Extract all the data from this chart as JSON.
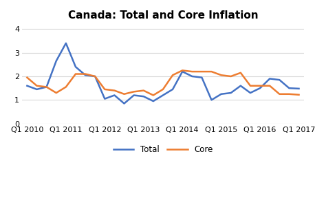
{
  "title": "Canada: Total and Core Inflation",
  "total_y": [
    1.6,
    1.45,
    1.55,
    2.65,
    3.4,
    2.4,
    2.05,
    2.0,
    1.05,
    1.2,
    0.85,
    1.2,
    1.15,
    0.95,
    1.2,
    1.45,
    2.2,
    2.0,
    1.95,
    1.0,
    1.25,
    1.3,
    1.6,
    1.3,
    1.5,
    1.9,
    1.85,
    1.5,
    1.48
  ],
  "core_y": [
    1.95,
    1.6,
    1.55,
    1.3,
    1.55,
    2.1,
    2.1,
    2.0,
    1.45,
    1.4,
    1.25,
    1.35,
    1.4,
    1.2,
    1.45,
    2.05,
    2.25,
    2.2,
    2.2,
    2.2,
    2.05,
    2.0,
    2.15,
    1.6,
    1.6,
    1.6,
    1.25,
    1.25,
    1.22
  ],
  "total_color": "#4472c4",
  "core_color": "#ed7d31",
  "ylim": [
    0,
    4.2
  ],
  "yticks": [
    0,
    1,
    2,
    3,
    4
  ],
  "xtick_positions": [
    0,
    4,
    8,
    12,
    16,
    20,
    24,
    28
  ],
  "x_labels_full": [
    "Q1 2010",
    "Q1 2011",
    "Q1 2012",
    "Q1 2013",
    "Q1 2014",
    "Q1 2015",
    "Q1 2016",
    "Q1 2017"
  ],
  "background_color": "#ffffff",
  "plot_bg_color": "#ffffff",
  "grid_color": "#d9d9d9",
  "title_fontsize": 11,
  "tick_fontsize": 8,
  "legend_labels": [
    "Total",
    "Core"
  ],
  "line_width": 1.8
}
